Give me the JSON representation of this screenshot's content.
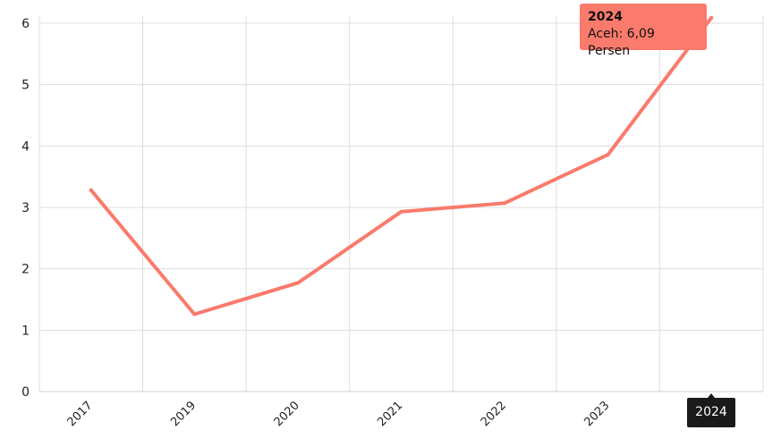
{
  "chart_data": {
    "type": "line",
    "categories": [
      "2017",
      "2019",
      "2020",
      "2021",
      "2022",
      "2023",
      "2024"
    ],
    "series": [
      {
        "name": "Aceh",
        "values": [
          3.28,
          1.26,
          1.77,
          2.93,
          3.07,
          3.86,
          6.09
        ],
        "color": "#fa7a6b"
      }
    ],
    "ylim": [
      0,
      6
    ],
    "yticks": [
      "0",
      "1",
      "2",
      "3",
      "4",
      "5",
      "6"
    ],
    "grid": true
  },
  "tooltip": {
    "title": "2024",
    "text": "Aceh: 6,09 Persen"
  },
  "axis_badge": "2024"
}
